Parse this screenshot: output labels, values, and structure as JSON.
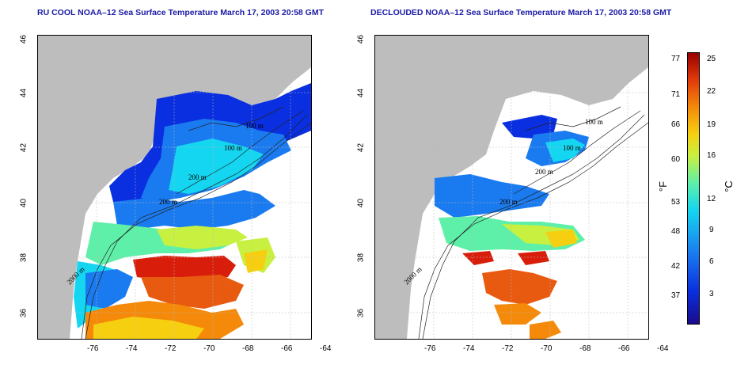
{
  "titles": {
    "left": "RU COOL NOAA–12 Sea Surface Temperature March 17, 2003 20:58 GMT",
    "right": "DECLOUDED NOAA–12 Sea Surface Temperature March 17, 2003 20:58 GMT"
  },
  "lon_ticks": [
    "-76",
    "-74",
    "-72",
    "-70",
    "-68",
    "-66",
    "-64"
  ],
  "lat_ticks": [
    "46",
    "44",
    "42",
    "40",
    "38",
    "36"
  ],
  "contour_labels": [
    "100 m",
    "100 m",
    "200 m",
    "200 m",
    "2000 m"
  ],
  "colorbar": {
    "f_ticks": [
      "77",
      "71",
      "66",
      "60",
      "53",
      "48",
      "42",
      "37"
    ],
    "c_ticks": [
      "25",
      "22",
      "19",
      "16",
      "12",
      "9",
      "6",
      "3"
    ],
    "f_unit": "°F",
    "c_unit": "°C"
  },
  "colors": {
    "land": "#bdbdbd",
    "cold": "#0a2fe0",
    "warm": "#d81e0a",
    "title": "#1a1aa6"
  }
}
